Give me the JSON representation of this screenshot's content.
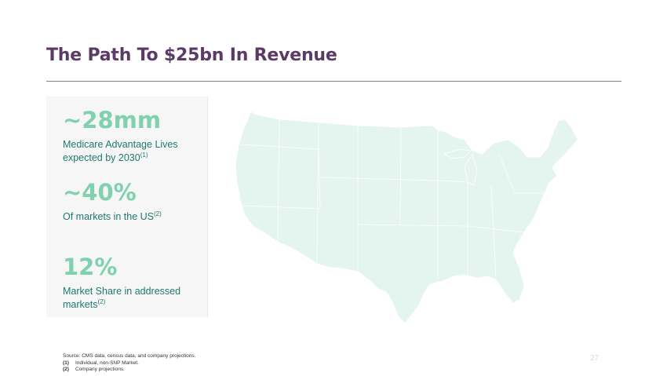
{
  "slide": {
    "title": "The Path To $25bn In Revenue",
    "page_number": "27"
  },
  "stats": [
    {
      "value": "~28mm",
      "desc": "Medicare Advantage Lives expected by 2030",
      "footnote_marker": "(1)"
    },
    {
      "value": "~40%",
      "desc": "Of markets in the US",
      "footnote_marker": "(2)"
    },
    {
      "value": "12%",
      "desc": "Market Share in addressed markets",
      "footnote_marker": "(2)"
    }
  ],
  "footnotes": {
    "source": "Source: CMS data, census data, and company projections.",
    "items": [
      {
        "num": "(1)",
        "text": "Individual, non-SNP Market."
      },
      {
        "num": "(2)",
        "text": "Company projections."
      }
    ]
  },
  "colors": {
    "title": "#5b3a66",
    "stat_value": "#7fd1b0",
    "stat_desc": "#1f7a6c",
    "map_fill": "#e4f4ee"
  }
}
